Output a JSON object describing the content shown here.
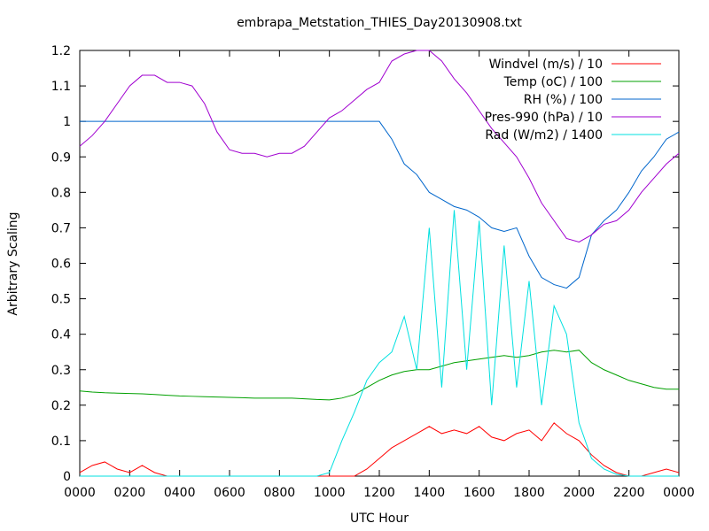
{
  "chart_data": {
    "type": "line",
    "title": "embrapa_Metstation_THIES_Day20130908.txt",
    "x_label": "UTC Hour",
    "y_label": "Arbitrary Scaling",
    "x": [
      0,
      0.5,
      1,
      1.5,
      2,
      2.5,
      3,
      3.5,
      4,
      4.5,
      5,
      5.5,
      6,
      6.5,
      7,
      7.5,
      8,
      8.5,
      9,
      9.5,
      10,
      10.5,
      11,
      11.5,
      12,
      12.5,
      13,
      13.5,
      14,
      14.5,
      15,
      15.5,
      16,
      16.5,
      17,
      17.5,
      18,
      18.5,
      19,
      19.5,
      20,
      20.5,
      21,
      21.5,
      22,
      22.5,
      23,
      23.5,
      24
    ],
    "xlim": [
      0,
      24
    ],
    "xticks": [
      {
        "value": 0,
        "label": "0000"
      },
      {
        "value": 2,
        "label": "0200"
      },
      {
        "value": 4,
        "label": "0400"
      },
      {
        "value": 6,
        "label": "0600"
      },
      {
        "value": 8,
        "label": "0800"
      },
      {
        "value": 10,
        "label": "1000"
      },
      {
        "value": 12,
        "label": "1200"
      },
      {
        "value": 14,
        "label": "1400"
      },
      {
        "value": 16,
        "label": "1600"
      },
      {
        "value": 18,
        "label": "1800"
      },
      {
        "value": 20,
        "label": "2000"
      },
      {
        "value": 22,
        "label": "2200"
      },
      {
        "value": 24,
        "label": "0000"
      }
    ],
    "ylim": [
      0,
      1.2
    ],
    "yticks": [
      0,
      0.1,
      0.2,
      0.3,
      0.4,
      0.5,
      0.6,
      0.7,
      0.8,
      0.9,
      1,
      1.1,
      1.2
    ],
    "legend": "top-right",
    "series": [
      {
        "name": "Windvel (m/s) / 10",
        "color": "#ff0000",
        "values": [
          0.01,
          0.03,
          0.04,
          0.02,
          0.01,
          0.03,
          0.01,
          0,
          0,
          0,
          0,
          0,
          0,
          0,
          0,
          0,
          0,
          0,
          0,
          0,
          0,
          0,
          0,
          0.02,
          0.05,
          0.08,
          0.1,
          0.12,
          0.14,
          0.12,
          0.13,
          0.12,
          0.14,
          0.11,
          0.1,
          0.12,
          0.13,
          0.1,
          0.15,
          0.12,
          0.1,
          0.06,
          0.03,
          0.01,
          0,
          0,
          0.01,
          0.02,
          0.01
        ]
      },
      {
        "name": "Temp (oC) / 100",
        "color": "#00a000",
        "values": [
          0.24,
          0.237,
          0.235,
          0.234,
          0.233,
          0.232,
          0.23,
          0.228,
          0.226,
          0.225,
          0.224,
          0.223,
          0.222,
          0.221,
          0.22,
          0.22,
          0.22,
          0.22,
          0.218,
          0.216,
          0.215,
          0.22,
          0.23,
          0.25,
          0.27,
          0.285,
          0.295,
          0.3,
          0.3,
          0.31,
          0.32,
          0.325,
          0.33,
          0.335,
          0.34,
          0.335,
          0.34,
          0.35,
          0.355,
          0.35,
          0.355,
          0.32,
          0.3,
          0.285,
          0.27,
          0.26,
          0.25,
          0.245,
          0.245
        ]
      },
      {
        "name": "RH (%) / 100",
        "color": "#0066cc",
        "values": [
          1,
          1,
          1,
          1,
          1,
          1,
          1,
          1,
          1,
          1,
          1,
          1,
          1,
          1,
          1,
          1,
          1,
          1,
          1,
          1,
          1,
          1,
          1,
          1,
          1,
          0.95,
          0.88,
          0.85,
          0.8,
          0.78,
          0.76,
          0.75,
          0.73,
          0.7,
          0.69,
          0.7,
          0.62,
          0.56,
          0.54,
          0.53,
          0.56,
          0.68,
          0.72,
          0.75,
          0.8,
          0.86,
          0.9,
          0.95,
          0.97
        ]
      },
      {
        "name": "Pres-990 (hPa) / 10",
        "color": "#a000d0",
        "values": [
          0.93,
          0.96,
          1,
          1.05,
          1.1,
          1.13,
          1.13,
          1.11,
          1.11,
          1.1,
          1.05,
          0.97,
          0.92,
          0.91,
          0.91,
          0.9,
          0.91,
          0.91,
          0.93,
          0.97,
          1.01,
          1.03,
          1.06,
          1.09,
          1.11,
          1.17,
          1.19,
          1.2,
          1.2,
          1.17,
          1.12,
          1.08,
          1.03,
          0.98,
          0.94,
          0.9,
          0.84,
          0.77,
          0.72,
          0.67,
          0.66,
          0.68,
          0.71,
          0.72,
          0.75,
          0.8,
          0.84,
          0.88,
          0.91
        ]
      },
      {
        "name": "Rad (W/m2) / 1400",
        "color": "#00e0e0",
        "values": [
          0,
          0,
          0,
          0,
          0,
          0,
          0,
          0,
          0,
          0,
          0,
          0,
          0,
          0,
          0,
          0,
          0,
          0,
          0,
          0,
          0.01,
          0.1,
          0.18,
          0.27,
          0.32,
          0.35,
          0.45,
          0.3,
          0.7,
          0.25,
          0.75,
          0.3,
          0.72,
          0.2,
          0.65,
          0.25,
          0.55,
          0.2,
          0.48,
          0.4,
          0.15,
          0.05,
          0.02,
          0.005,
          0,
          0,
          0,
          0,
          0
        ]
      }
    ]
  }
}
